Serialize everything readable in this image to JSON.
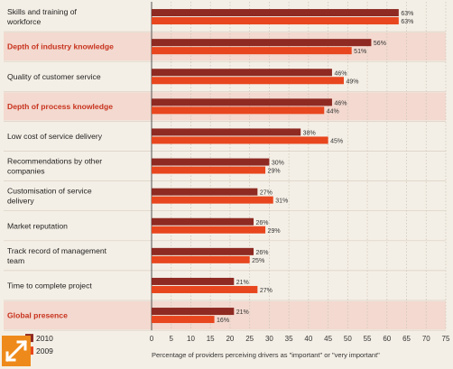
{
  "chart_data": {
    "type": "bar",
    "orientation": "horizontal",
    "categories": [
      "Skills and training of workforce",
      "Depth of industry knowledge",
      "Quality of customer service",
      "Depth of process knowledge",
      "Low cost of service delivery",
      "Recommendations by other companies",
      "Customisation of service delivery",
      "Market reputation",
      "Track record of management team",
      "Time to complete project",
      "Global presence"
    ],
    "highlighted_categories": [
      "Depth of industry knowledge",
      "Depth of process knowledge",
      "Global presence"
    ],
    "series": [
      {
        "name": "2010",
        "color": "#8e2a22",
        "values": [
          63,
          56,
          46,
          46,
          38,
          30,
          27,
          26,
          26,
          21,
          21
        ],
        "labels": [
          "63%",
          "56%",
          "46%",
          "46%",
          "38%",
          "30%",
          "27%",
          "26%",
          "26%",
          "21%",
          "21%"
        ]
      },
      {
        "name": "2009",
        "color": "#e8461e",
        "values": [
          63,
          51,
          49,
          44,
          45,
          29,
          31,
          29,
          25,
          27,
          16
        ],
        "labels": [
          "63%",
          "51%",
          "49%",
          "44%",
          "45%",
          "29%",
          "31%",
          "29%",
          "25%",
          "27%",
          "16%"
        ]
      }
    ],
    "xlim": [
      0,
      75
    ],
    "xticks": [
      "0",
      "5",
      "10",
      "15",
      "20",
      "25",
      "30",
      "35",
      "40",
      "45",
      "50",
      "55",
      "60",
      "65",
      "70",
      "75"
    ],
    "xlabel": "Percentage of providers perceiving drivers as \"important\" or \"very important\"",
    "legend_position": "bottom-left",
    "grid": true
  },
  "colors": {
    "highlight_text": "#c8321e",
    "normal_text": "#222222",
    "highlight_band": "#f3d9cf",
    "expand_button": "#ee8a1b"
  },
  "icons": {
    "expand": "expand-arrows-icon"
  }
}
